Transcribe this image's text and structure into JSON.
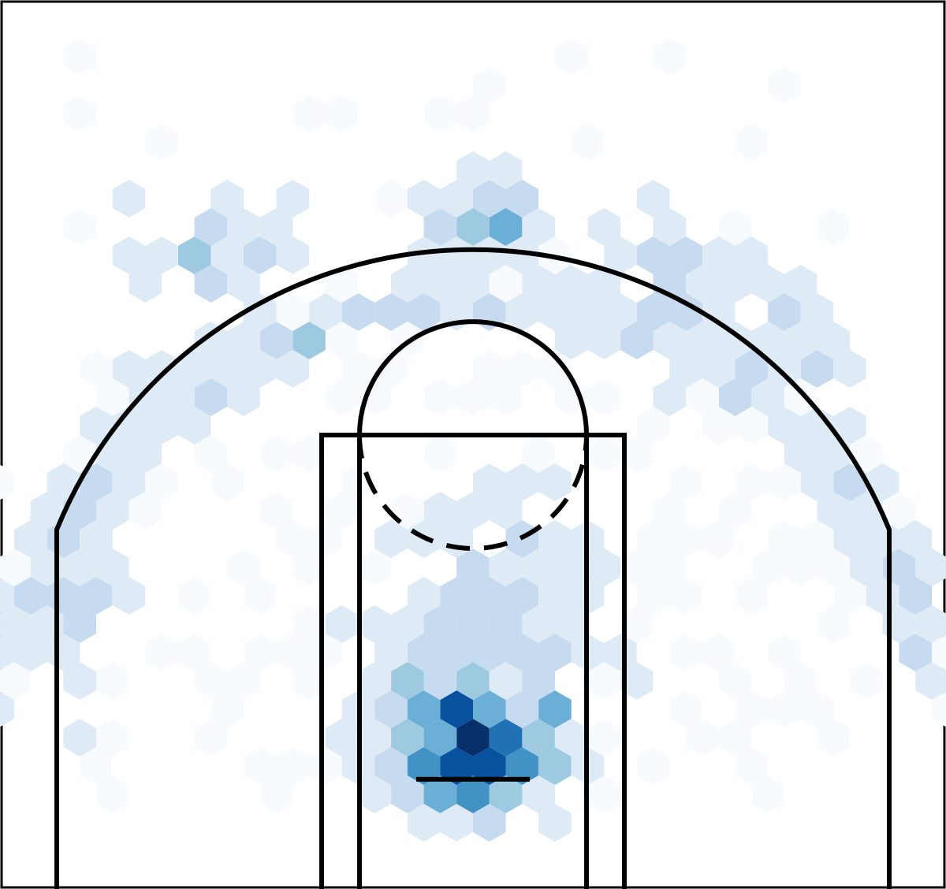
{
  "chart_data": {
    "type": "heatmap",
    "subtype": "hexbin",
    "title": "",
    "xlabel": "",
    "ylabel": "",
    "xlim": [
      -25,
      25
    ],
    "ylim": [
      -5,
      42
    ],
    "grid": false,
    "legend": "none",
    "colormap": [
      "#f7fbff",
      "#deebf7",
      "#c6dbef",
      "#9ecae1",
      "#6baed6",
      "#4292c6",
      "#2171b5",
      "#08519c",
      "#08306b"
    ],
    "line_color": "#000000",
    "court": {
      "three_point_radius": 23.75,
      "corner_three_x": 22,
      "corner_three_end_y": 14,
      "paint_outer": [
        -8,
        8,
        19
      ],
      "paint_inner": [
        -6,
        6,
        19
      ],
      "free_throw_circle_radius": 6,
      "backboard": [
        -3,
        3,
        0.8
      ]
    },
    "clusters": [
      {
        "x": 0,
        "y": 2.5,
        "sx": 2.2,
        "sy": 1.8,
        "n": 160,
        "w": 3.0
      },
      {
        "x": 0,
        "y": 9,
        "sx": 3.0,
        "sy": 3.5,
        "n": 90,
        "w": 1.2
      },
      {
        "x": -13.5,
        "y": 28.5,
        "sx": 1.6,
        "sy": 1.5,
        "n": 30,
        "w": 1.6
      },
      {
        "x": 0.5,
        "y": 30.5,
        "sx": 1.8,
        "sy": 1.2,
        "n": 30,
        "w": 1.7
      },
      {
        "x": 11.5,
        "y": 28,
        "sx": 1.6,
        "sy": 1.4,
        "n": 25,
        "w": 1.4
      },
      {
        "x": 16.5,
        "y": 23.5,
        "sx": 1.6,
        "sy": 1.6,
        "n": 20,
        "w": 1.3
      },
      {
        "x": -21,
        "y": 12,
        "sx": 1.2,
        "sy": 3.5,
        "n": 30,
        "w": 0.9
      }
    ]
  }
}
